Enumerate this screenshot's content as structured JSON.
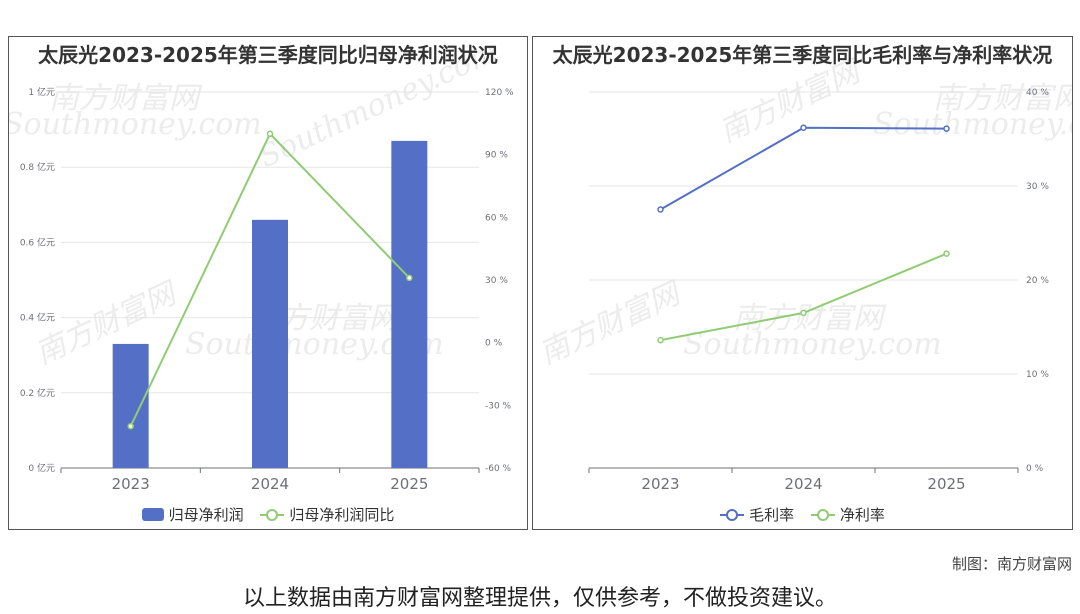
{
  "watermark": {
    "cn": "南方财富网",
    "en": "Southmoney.com"
  },
  "credit": "制图：南方财富网",
  "footer_note": "以上数据由南方财富网整理提供，仅供参考，不做投资建议。",
  "chart_data": [
    {
      "type": "bar",
      "title": "太辰光2023-2025年第三季度同比归母净利润状况",
      "categories": [
        "2023",
        "2024",
        "2025"
      ],
      "y_left_ticks": [
        "0 亿元",
        "0.2 亿元",
        "0.4 亿元",
        "0.6 亿元",
        "0.8 亿元",
        "1 亿元"
      ],
      "y_right_ticks": [
        "-60 %",
        "-30 %",
        "0 %",
        "30 %",
        "60 %",
        "90 %",
        "120 %"
      ],
      "ylim_left": [
        0,
        1
      ],
      "ylim_right": [
        -60,
        120
      ],
      "grid": true,
      "legend_position": "bottom-center",
      "series": [
        {
          "name": "归母净利润",
          "kind": "bar",
          "axis": "left",
          "color": "#5470c6",
          "values": [
            0.33,
            0.66,
            0.87
          ]
        },
        {
          "name": "归母净利润同比",
          "kind": "line",
          "axis": "right",
          "color": "#91cc75",
          "values": [
            -40,
            100,
            31
          ]
        }
      ]
    },
    {
      "type": "line",
      "title": "太辰光2023-2025年第三季度同比毛利率与净利率状况",
      "categories": [
        "2023",
        "2024",
        "2025"
      ],
      "y_right_ticks": [
        "0 %",
        "10 %",
        "20 %",
        "30 %",
        "40 %"
      ],
      "ylim_right": [
        0,
        40
      ],
      "grid": true,
      "legend_position": "bottom-center",
      "series": [
        {
          "name": "毛利率",
          "kind": "line",
          "axis": "right",
          "color": "#5470c6",
          "values": [
            27.5,
            36.2,
            36.1
          ]
        },
        {
          "name": "净利率",
          "kind": "line",
          "axis": "right",
          "color": "#91cc75",
          "values": [
            13.6,
            16.5,
            22.8
          ]
        }
      ]
    }
  ]
}
